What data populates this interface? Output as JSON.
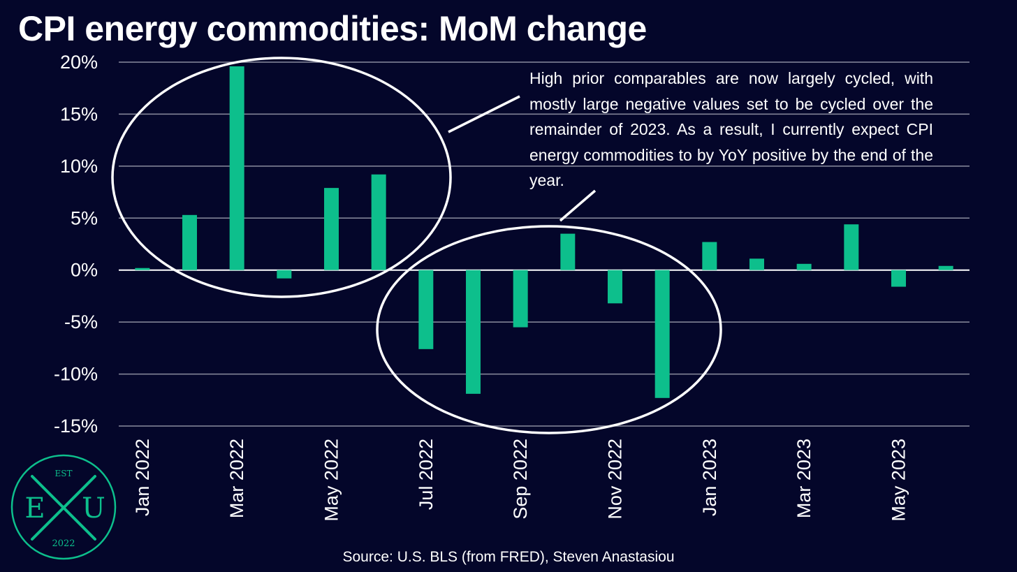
{
  "title": "CPI energy commodities: MoM change",
  "annotation": "High prior comparables are now largely cycled, with mostly large negative values set to be cycled over the remainder of 2023. As a result, I currently expect CPI energy commodities to by YoY positive by the end of the year.",
  "source": "Source: U.S. BLS (from FRED), Steven Anastasiou",
  "logo": {
    "top": "EST",
    "left": "E",
    "right": "U",
    "bottom": "2022"
  },
  "colors": {
    "background": "#04062a",
    "bar": "#0dbf8c",
    "grid": "#8a8c9e",
    "text": "#ffffff",
    "logo": "#0dbf8c"
  },
  "chart_data": {
    "type": "bar",
    "categories": [
      "Jan 2022",
      "Feb 2022",
      "Mar 2022",
      "Apr 2022",
      "May 2022",
      "Jun 2022",
      "Jul 2022",
      "Aug 2022",
      "Sep 2022",
      "Oct 2022",
      "Nov 2022",
      "Dec 2022",
      "Jan 2023",
      "Feb 2023",
      "Mar 2023",
      "Apr 2023",
      "May 2023",
      "Jun 2023"
    ],
    "values": [
      0.2,
      5.3,
      19.6,
      -0.8,
      7.9,
      9.2,
      -7.6,
      -11.9,
      -5.5,
      3.5,
      -3.2,
      -12.3,
      2.7,
      1.1,
      0.6,
      4.4,
      -1.6,
      0.4
    ],
    "tick_labels": [
      "Jan 2022",
      "Mar 2022",
      "May 2022",
      "Jul 2022",
      "Sep 2022",
      "Nov 2022",
      "Jan 2023",
      "Mar 2023",
      "May 2023"
    ],
    "y_ticks": [
      "20%",
      "15%",
      "10%",
      "5%",
      "0%",
      "-5%",
      "-10%",
      "-15%"
    ],
    "y_tick_values": [
      20,
      15,
      10,
      5,
      0,
      -5,
      -10,
      -15
    ],
    "ylim": [
      -15,
      20
    ],
    "grid": true,
    "legend": "none"
  }
}
